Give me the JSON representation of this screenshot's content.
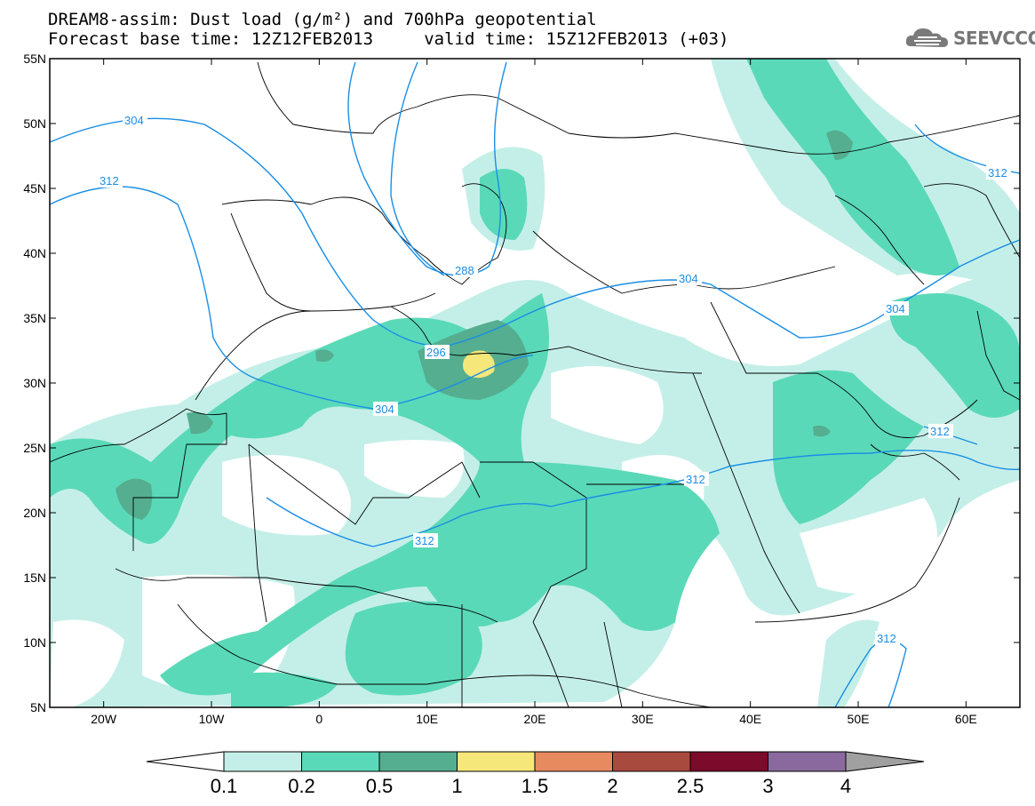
{
  "header": {
    "title_line1": "DREAM8-assim: Dust load (g/m²) and 700hPa geopotential",
    "title_line2": "Forecast base time: 12Z12FEB2013     valid time: 15Z12FEB2013 (+03)",
    "logo_text": "SEEVCCC"
  },
  "map": {
    "lat_ticks": [
      "55N",
      "50N",
      "45N",
      "40N",
      "35N",
      "30N",
      "25N",
      "20N",
      "15N",
      "10N",
      "5N"
    ],
    "lon_ticks": [
      "20W",
      "10W",
      "0",
      "10E",
      "20E",
      "30E",
      "40E",
      "50E",
      "60E"
    ],
    "lat_values": [
      55,
      50,
      45,
      40,
      35,
      30,
      25,
      20,
      15,
      10,
      5
    ],
    "lon_values": [
      -20,
      -10,
      0,
      10,
      20,
      30,
      40,
      50,
      60
    ],
    "extent": {
      "lon_min": -25,
      "lon_max": 65,
      "lat_min": 5,
      "lat_max": 55
    },
    "contour_labels": [
      "304",
      "312",
      "288",
      "296",
      "304",
      "304",
      "312",
      "312",
      "312",
      "304",
      "312",
      "312"
    ]
  },
  "colorbar": {
    "labels": [
      "0.1",
      "0.2",
      "0.5",
      "1",
      "1.5",
      "2",
      "2.5",
      "3",
      "4"
    ],
    "colors": [
      "#c4efe8",
      "#5ad9b8",
      "#55ae8f",
      "#f5e77a",
      "#e88a60",
      "#a84a3e",
      "#7c0a2a",
      "#8a6a9e"
    ],
    "under_color": "#ffffff",
    "over_color": "#a0a0a0"
  },
  "colors": {
    "contour": "#1a8ee6",
    "border": "#000000"
  }
}
